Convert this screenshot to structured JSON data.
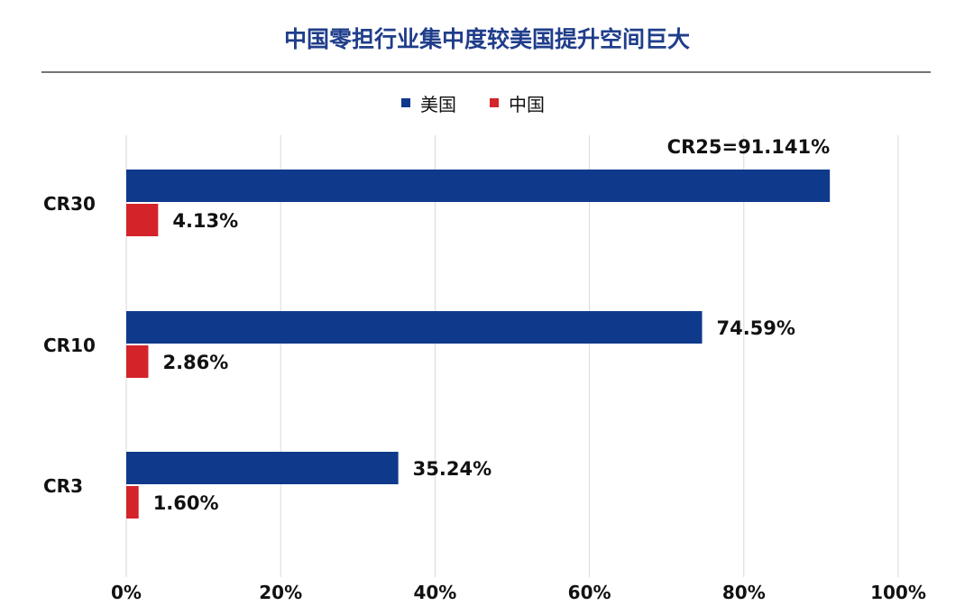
{
  "chart_data": {
    "type": "bar",
    "orientation": "horizontal",
    "title": "中国零担行业集中度较美国提升空间巨大",
    "categories": [
      "CR30",
      "CR10",
      "CR3"
    ],
    "series": [
      {
        "name": "美国",
        "color": "#0f3a8c",
        "values": [
          91.141,
          74.59,
          35.24
        ],
        "labels": [
          "CR25=91.141%",
          "74.59%",
          "35.24%"
        ]
      },
      {
        "name": "中国",
        "color": "#d4242a",
        "values": [
          4.13,
          2.86,
          1.6
        ],
        "labels": [
          "4.13%",
          "2.86%",
          "1.60%"
        ]
      }
    ],
    "xlim": [
      0,
      100
    ],
    "xticks": [
      "0%",
      "20%",
      "40%",
      "60%",
      "80%",
      "100%"
    ],
    "grid": true,
    "legend_position": "top"
  },
  "colors": {
    "title": "#1f3d8a",
    "text": "#111111",
    "grid": "#d9d9d9",
    "rule": "#222222"
  }
}
